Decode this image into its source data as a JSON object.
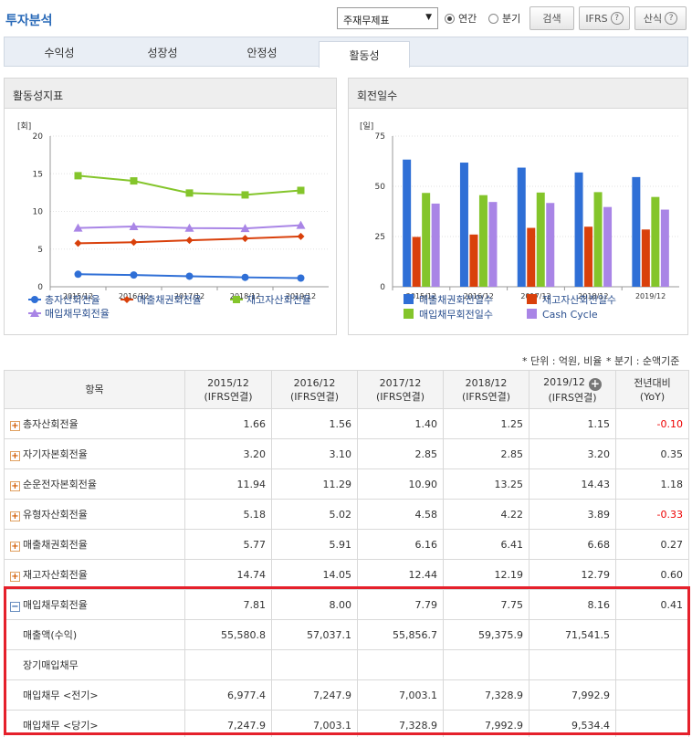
{
  "header": {
    "title": "투자분석",
    "statement_select": "주재무제표",
    "radio_annual": "연간",
    "radio_quarter": "분기",
    "search_btn": "검색",
    "ifrs_btn": "IFRS",
    "formula_btn": "산식",
    "help_glyph": "?"
  },
  "tabs": [
    "수익성",
    "성장성",
    "안정성",
    "활동성"
  ],
  "active_tab": "활동성",
  "chart_data": [
    {
      "type": "line",
      "title": "활동성지표",
      "ylabel": "[회]",
      "ylim": [
        0,
        20
      ],
      "yticks": [
        0,
        5,
        10,
        15,
        20
      ],
      "categories": [
        "2015/12",
        "2016/12",
        "2017/12",
        "2018/12",
        "2019/12"
      ],
      "series": [
        {
          "name": "총자산회전율",
          "color": "#2f6fd6",
          "marker": "circle",
          "values": [
            1.66,
            1.56,
            1.4,
            1.25,
            1.15
          ]
        },
        {
          "name": "매출채권회전율",
          "color": "#d9400b",
          "marker": "diamond",
          "values": [
            5.77,
            5.91,
            6.16,
            6.41,
            6.68
          ]
        },
        {
          "name": "재고자산회전율",
          "color": "#84c52b",
          "marker": "square",
          "values": [
            14.74,
            14.05,
            12.44,
            12.19,
            12.79
          ]
        },
        {
          "name": "매입채무회전율",
          "color": "#a985e6",
          "marker": "triangle",
          "values": [
            7.81,
            8.0,
            7.79,
            7.75,
            8.16
          ]
        }
      ],
      "legend": "bottom"
    },
    {
      "type": "bar",
      "title": "회전일수",
      "ylabel": "[일]",
      "ylim": [
        0,
        75
      ],
      "yticks": [
        0,
        25,
        50,
        75
      ],
      "categories": [
        "2015/12",
        "2016/12",
        "2017/12",
        "2018/12",
        "2019/12"
      ],
      "series": [
        {
          "name": "매출채권회전일수",
          "color": "#2f6fd6",
          "values": [
            63.3,
            61.8,
            59.3,
            56.9,
            54.6
          ]
        },
        {
          "name": "재고자산회전일수",
          "color": "#d9400b",
          "values": [
            24.8,
            26.0,
            29.3,
            29.9,
            28.5
          ]
        },
        {
          "name": "매입채무회전일수",
          "color": "#84c52b",
          "values": [
            46.7,
            45.6,
            46.9,
            47.1,
            44.7
          ]
        },
        {
          "name": "Cash Cycle",
          "color": "#a985e6",
          "values": [
            41.4,
            42.2,
            41.7,
            39.7,
            38.4
          ]
        }
      ],
      "legend": "bottom"
    }
  ],
  "notes": {
    "unit": "* 단위 : 억원, 비율",
    "quarter": "* 분기 : 순액기준"
  },
  "table": {
    "col_item": "항목",
    "columns": [
      {
        "period": "2015/12",
        "basis": "(IFRS연결)"
      },
      {
        "period": "2016/12",
        "basis": "(IFRS연결)"
      },
      {
        "period": "2017/12",
        "basis": "(IFRS연결)"
      },
      {
        "period": "2018/12",
        "basis": "(IFRS연결)"
      },
      {
        "period": "2019/12",
        "basis": "(IFRS연결)"
      }
    ],
    "yoy_head1": "전년대비",
    "yoy_head2": "(YoY)",
    "expand_plus": "+",
    "expand_minus": "−",
    "rows": [
      {
        "label": "총자산회전율",
        "values": [
          "1.66",
          "1.56",
          "1.40",
          "1.25",
          "1.15"
        ],
        "yoy": "-0.10",
        "neg": true,
        "type": "plus"
      },
      {
        "label": "자기자본회전율",
        "values": [
          "3.20",
          "3.10",
          "2.85",
          "2.85",
          "3.20"
        ],
        "yoy": "0.35",
        "neg": false,
        "type": "plus"
      },
      {
        "label": "순운전자본회전율",
        "values": [
          "11.94",
          "11.29",
          "10.90",
          "13.25",
          "14.43"
        ],
        "yoy": "1.18",
        "neg": false,
        "type": "plus"
      },
      {
        "label": "유형자산회전율",
        "values": [
          "5.18",
          "5.02",
          "4.58",
          "4.22",
          "3.89"
        ],
        "yoy": "-0.33",
        "neg": true,
        "type": "plus"
      },
      {
        "label": "매출채권회전율",
        "values": [
          "5.77",
          "5.91",
          "6.16",
          "6.41",
          "6.68"
        ],
        "yoy": "0.27",
        "neg": false,
        "type": "plus"
      },
      {
        "label": "재고자산회전율",
        "values": [
          "14.74",
          "14.05",
          "12.44",
          "12.19",
          "12.79"
        ],
        "yoy": "0.60",
        "neg": false,
        "type": "plus"
      },
      {
        "label": "매입채무회전율",
        "values": [
          "7.81",
          "8.00",
          "7.79",
          "7.75",
          "8.16"
        ],
        "yoy": "0.41",
        "neg": false,
        "type": "minus"
      },
      {
        "label": "매출액(수익)",
        "values": [
          "55,580.8",
          "57,037.1",
          "55,856.7",
          "59,375.9",
          "71,541.5"
        ],
        "yoy": "",
        "neg": false,
        "type": "sub"
      },
      {
        "label": "장기매입채무",
        "values": [
          "",
          "",
          "",
          "",
          ""
        ],
        "yoy": "",
        "neg": false,
        "type": "sub"
      },
      {
        "label": "매입채무 <전기>",
        "values": [
          "6,977.4",
          "7,247.9",
          "7,003.1",
          "7,328.9",
          "7,992.9"
        ],
        "yoy": "",
        "neg": false,
        "type": "sub"
      },
      {
        "label": "매입채무 <당기>",
        "values": [
          "7,247.9",
          "7,003.1",
          "7,328.9",
          "7,992.9",
          "9,534.4"
        ],
        "yoy": "",
        "neg": false,
        "type": "sub"
      }
    ]
  }
}
